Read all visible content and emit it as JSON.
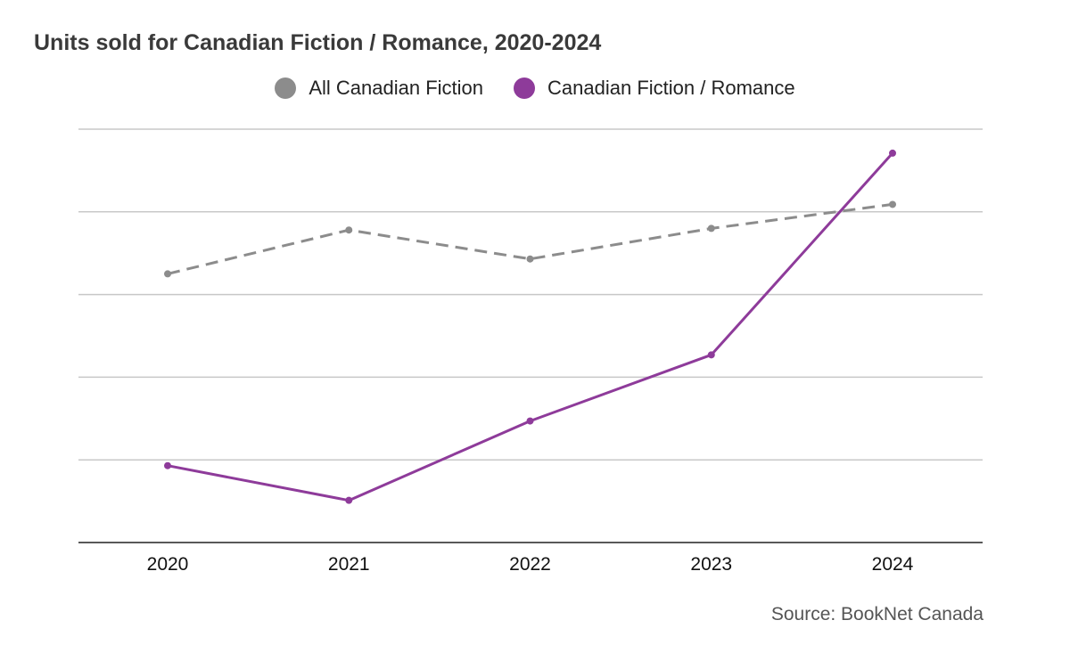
{
  "chart_data": {
    "type": "line",
    "title": "Units sold for Canadian Fiction / Romance, 2020-2024",
    "xlabel": "",
    "ylabel": "",
    "grid": true,
    "legend_position": "top-center",
    "categories": [
      "2020",
      "2021",
      "2022",
      "2023",
      "2024"
    ],
    "ylim": [
      0,
      5
    ],
    "series": [
      {
        "name": "All Canadian Fiction",
        "color": "#8c8c8c",
        "dash": true,
        "values": [
          3.25,
          3.78,
          3.43,
          3.8,
          4.09
        ]
      },
      {
        "name": "Canadian Fiction / Romance",
        "color": "#8e3b9a",
        "dash": false,
        "values": [
          0.93,
          0.51,
          1.47,
          2.27,
          4.71
        ]
      }
    ],
    "source": "Source: BookNet Canada"
  }
}
